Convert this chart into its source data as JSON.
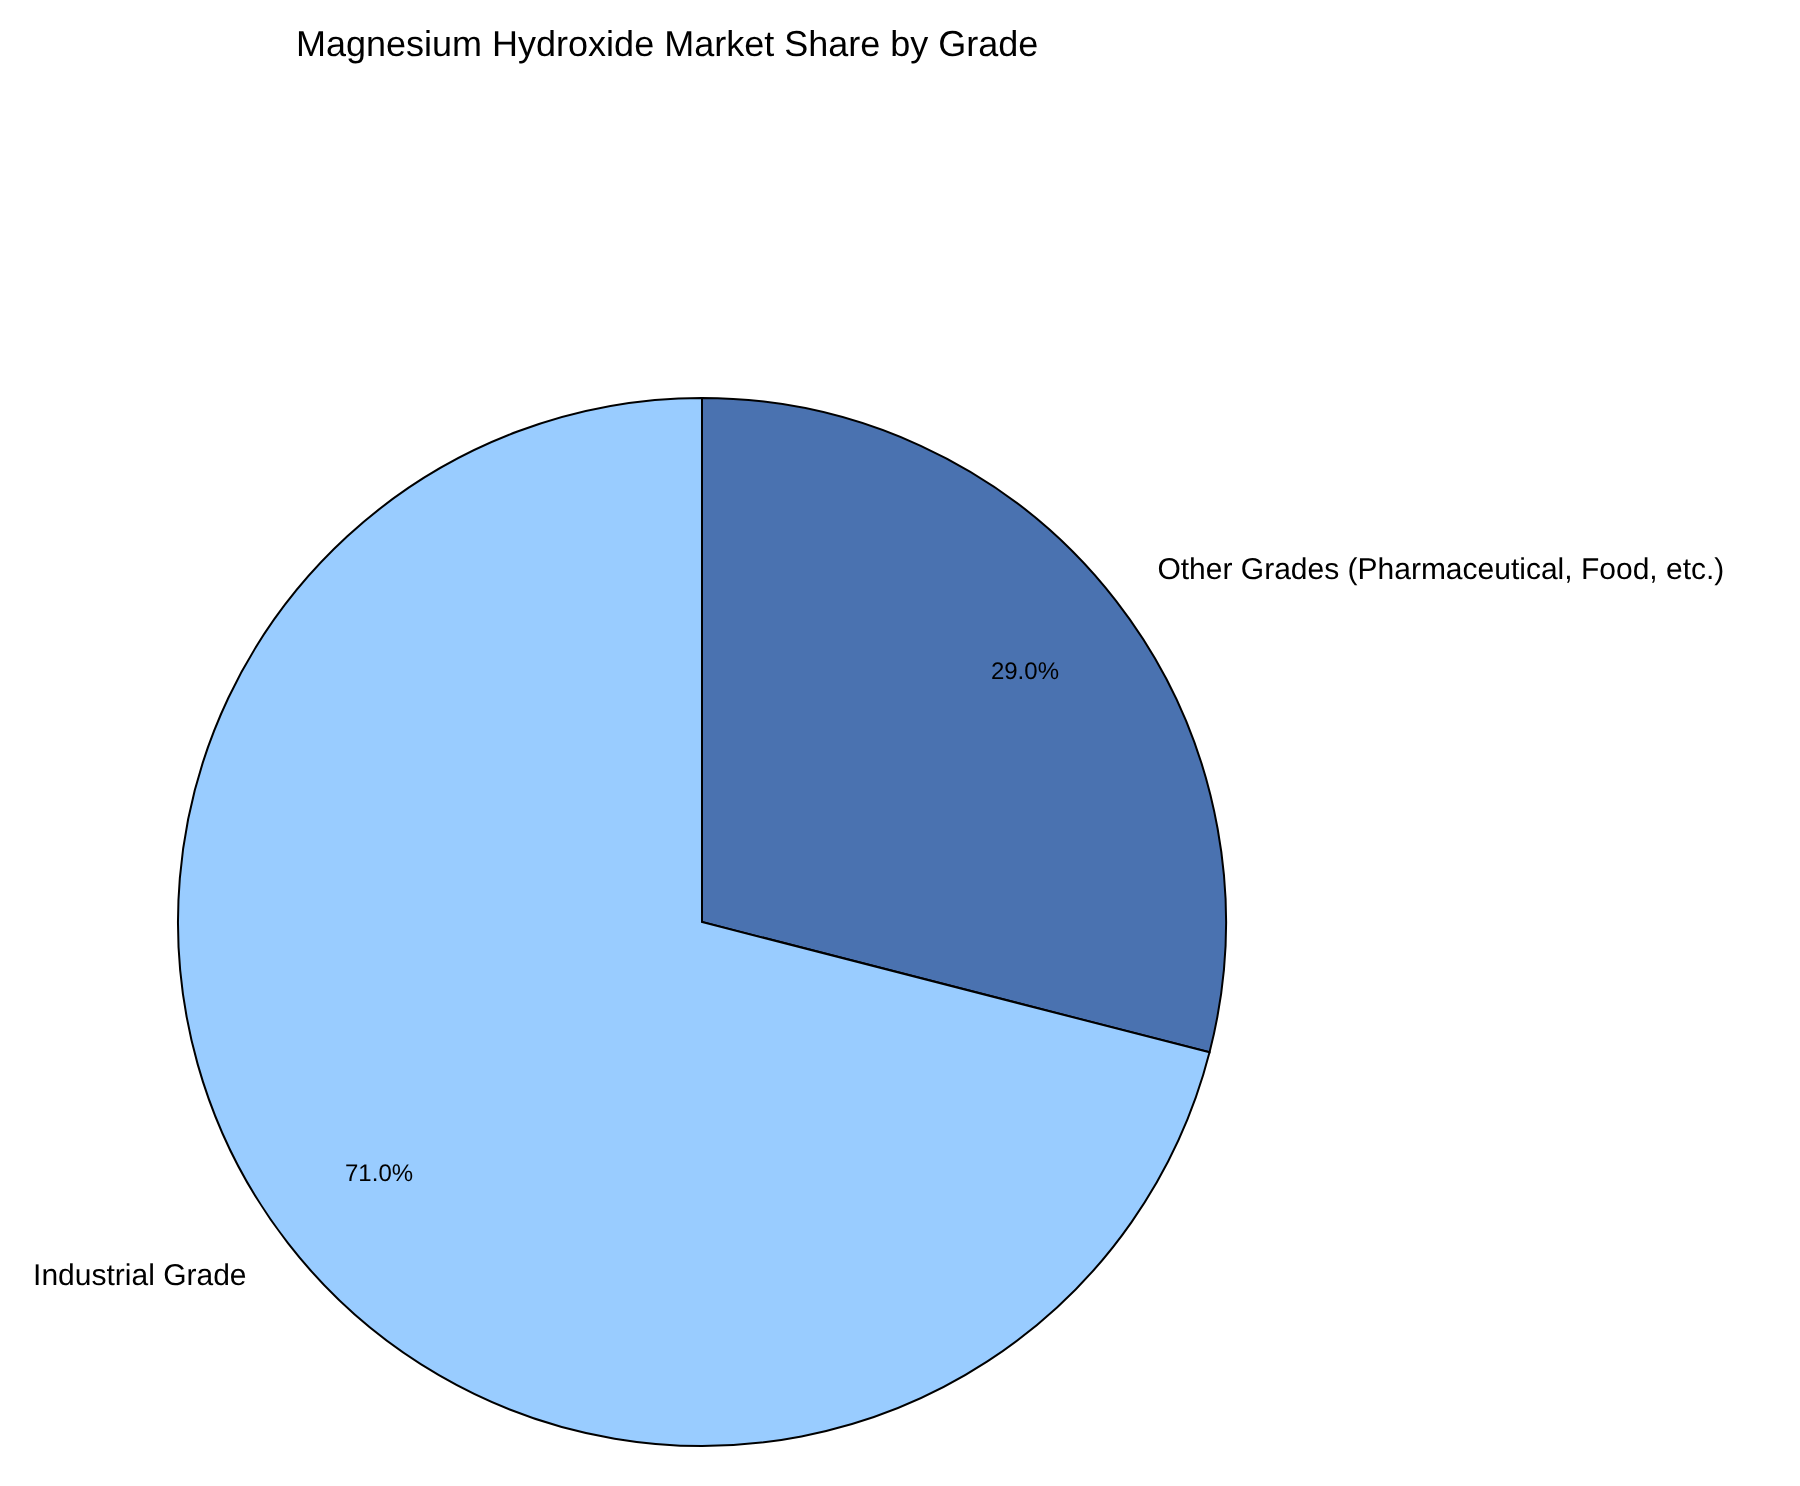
{
  "chart_data": {
    "type": "pie",
    "title": "Magnesium Hydroxide Market Share by Grade",
    "categories": [
      "Other Grades (Pharmaceutical, Food, etc.)",
      "Industrial Grade"
    ],
    "values": [
      29.0,
      71.0
    ],
    "value_labels": [
      "29.0%",
      "71.0%"
    ],
    "colors": [
      "#4a72b0",
      "#99ccff"
    ]
  }
}
